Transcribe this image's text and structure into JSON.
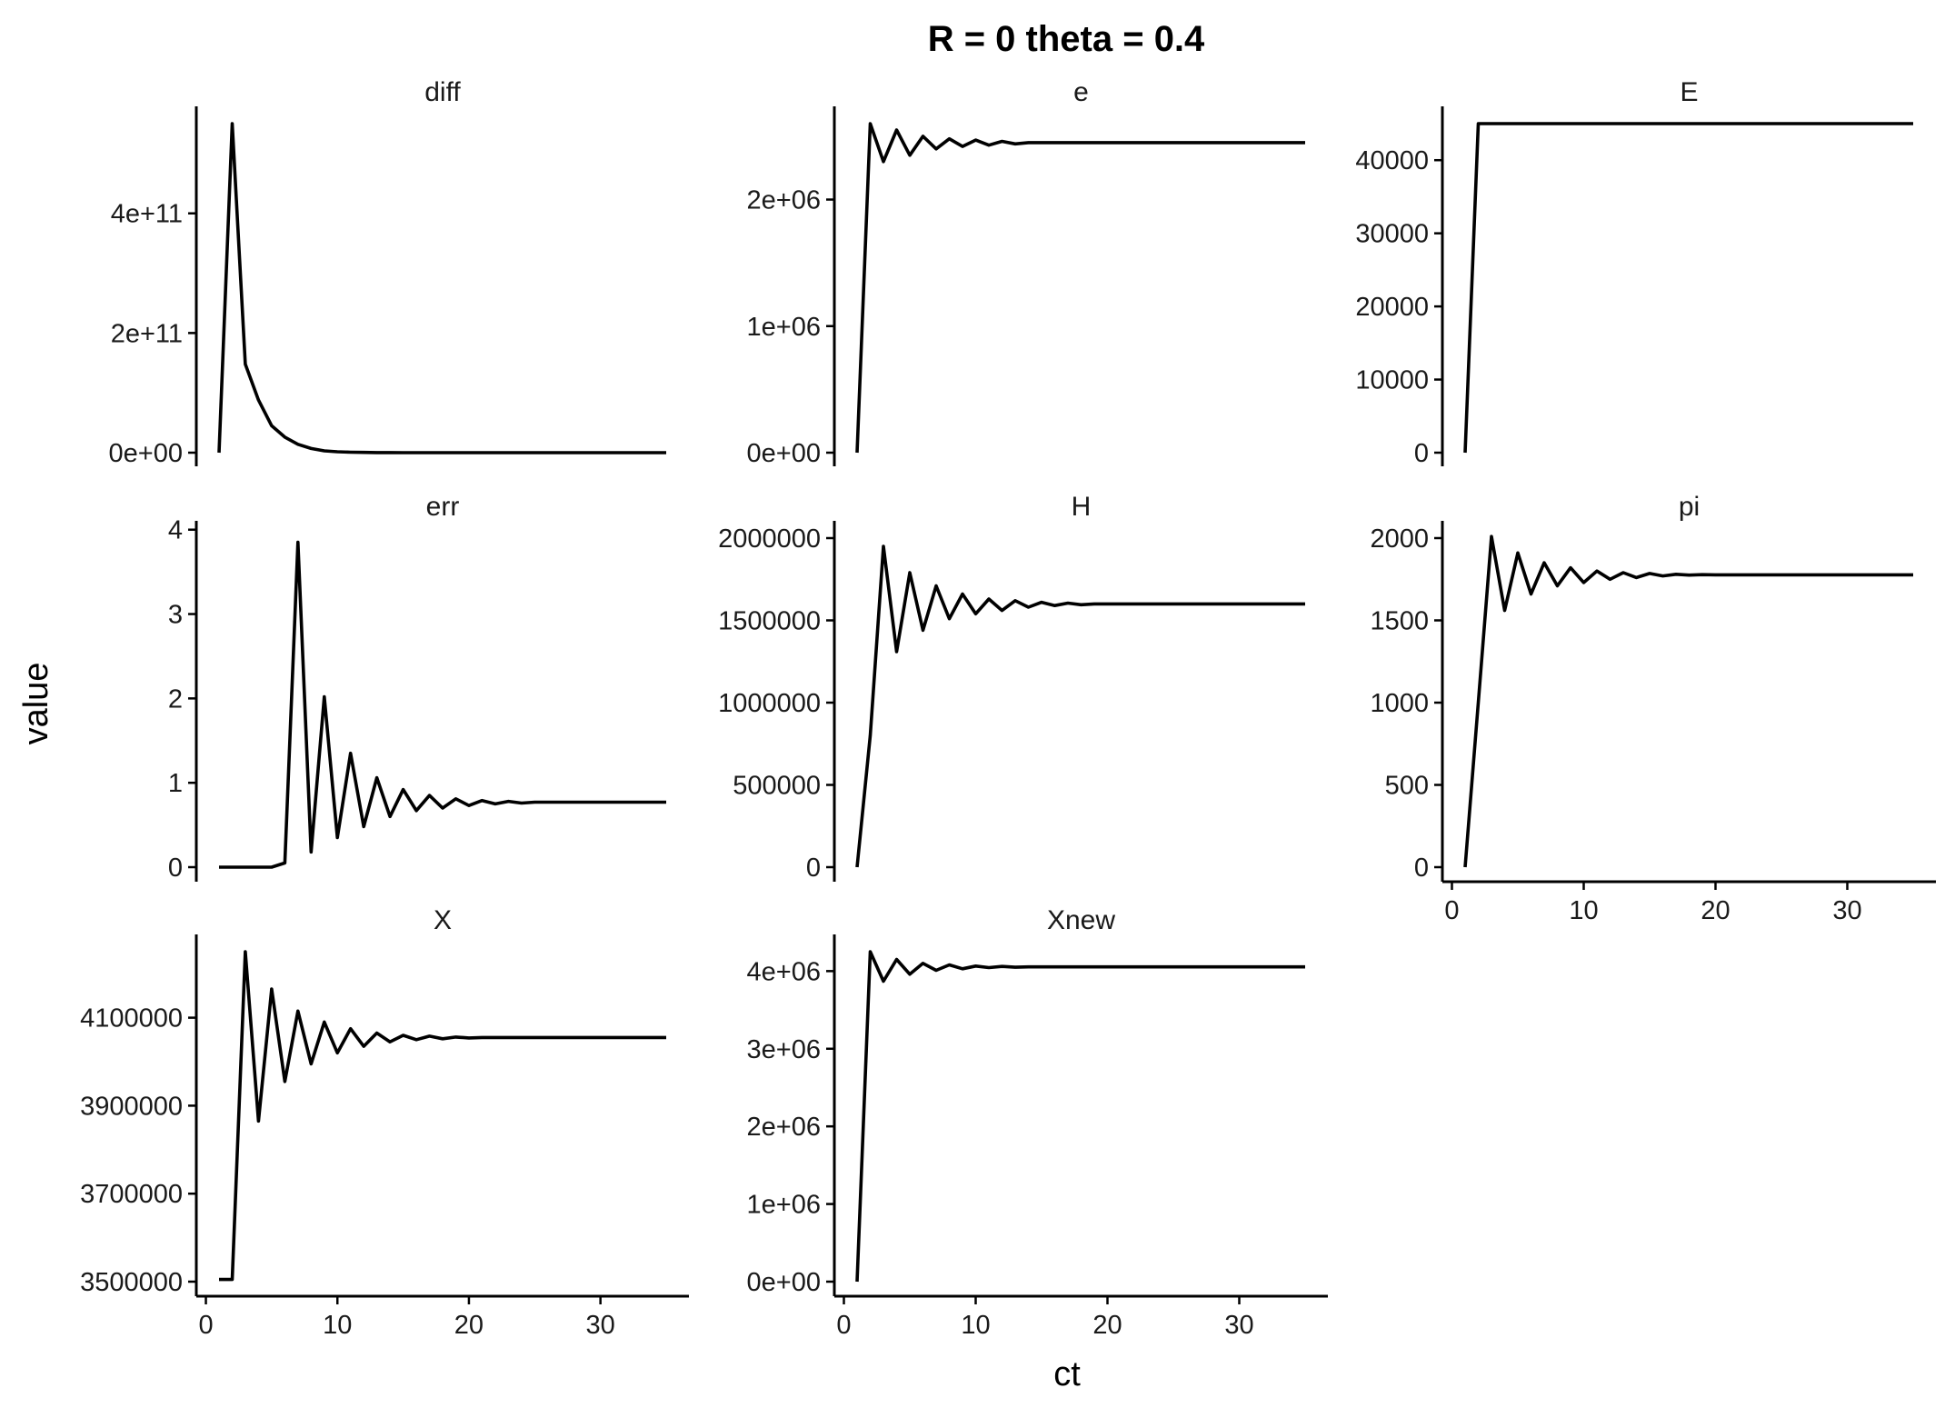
{
  "chart_data": {
    "type": "line",
    "title": "R =  0 theta =  0.4",
    "xlabel": "ct",
    "ylabel": "value",
    "x_ticks": [
      "0",
      "10",
      "20",
      "30"
    ],
    "xlim": [
      1,
      35
    ],
    "grid": false,
    "panels": [
      {
        "name": "diff",
        "ylim": [
          0,
          550000000000.0
        ],
        "y_ticks": [
          {
            "v": 0,
            "label": "0e+00"
          },
          {
            "v": 200000000000.0,
            "label": "2e+11"
          },
          {
            "v": 400000000000.0,
            "label": "4e+11"
          }
        ],
        "x": [
          1,
          2,
          3,
          4,
          5,
          6,
          7,
          8,
          9,
          10,
          11,
          12,
          13,
          14,
          15,
          16,
          17,
          18,
          19,
          20,
          21,
          22,
          23,
          24,
          25,
          26,
          27,
          28,
          29,
          30,
          31,
          32,
          33,
          34,
          35
        ],
        "values": [
          0,
          550000000000.0,
          148000000000.0,
          88000000000.0,
          45000000000.0,
          26000000000.0,
          14000000000.0,
          7000000000.0,
          3000000000.0,
          1500000000.0,
          800000000.0,
          400000000.0,
          200000000.0,
          100000000.0,
          50000000.0,
          20000000.0,
          10000000.0,
          5000000.0,
          2000000.0,
          1000000.0,
          500000.0,
          200000.0,
          100000.0,
          50000.0,
          20000.0,
          10000.0,
          5000.0,
          2000.0,
          1000.0,
          500.0,
          200.0,
          100.0,
          50,
          20,
          10
        ]
      },
      {
        "name": "e",
        "ylim": [
          0,
          2600000.0
        ],
        "y_ticks": [
          {
            "v": 0,
            "label": "0e+00"
          },
          {
            "v": 1000000.0,
            "label": "1e+06"
          },
          {
            "v": 2000000.0,
            "label": "2e+06"
          }
        ],
        "x": [
          1,
          2,
          3,
          4,
          5,
          6,
          7,
          8,
          9,
          10,
          11,
          12,
          13,
          14,
          15,
          16,
          17,
          18,
          19,
          20,
          21,
          22,
          23,
          24,
          25,
          26,
          27,
          28,
          29,
          30,
          31,
          32,
          33,
          34,
          35
        ],
        "values": [
          0,
          2600000.0,
          2300000.0,
          2550000.0,
          2350000.0,
          2500000.0,
          2400000.0,
          2480000.0,
          2420000.0,
          2470000.0,
          2430000.0,
          2460000.0,
          2440000.0,
          2450000.0,
          2450000.0,
          2450000.0,
          2450000.0,
          2450000.0,
          2450000.0,
          2450000.0,
          2450000.0,
          2450000.0,
          2450000.0,
          2450000.0,
          2450000.0,
          2450000.0,
          2450000.0,
          2450000.0,
          2450000.0,
          2450000.0,
          2450000.0,
          2450000.0,
          2450000.0,
          2450000.0,
          2450000.0
        ]
      },
      {
        "name": "E",
        "ylim": [
          0,
          45000
        ],
        "y_ticks": [
          {
            "v": 0,
            "label": "0"
          },
          {
            "v": 10000,
            "label": "10000"
          },
          {
            "v": 20000,
            "label": "20000"
          },
          {
            "v": 30000,
            "label": "30000"
          },
          {
            "v": 40000,
            "label": "40000"
          }
        ],
        "x": [
          1,
          2,
          35
        ],
        "values": [
          0,
          45000,
          45000
        ]
      },
      {
        "name": "err",
        "ylim": [
          0,
          3.9
        ],
        "y_ticks": [
          {
            "v": 0,
            "label": "0"
          },
          {
            "v": 1,
            "label": "1"
          },
          {
            "v": 2,
            "label": "2"
          },
          {
            "v": 3,
            "label": "3"
          },
          {
            "v": 4,
            "label": "4"
          }
        ],
        "x": [
          1,
          2,
          3,
          4,
          5,
          6,
          7,
          8,
          9,
          10,
          11,
          12,
          13,
          14,
          15,
          16,
          17,
          18,
          19,
          20,
          21,
          22,
          23,
          24,
          25,
          26,
          27,
          28,
          29,
          30,
          31,
          32,
          33,
          34,
          35
        ],
        "values": [
          0,
          0,
          0,
          0,
          0,
          0.05,
          3.85,
          0.18,
          2.02,
          0.35,
          1.35,
          0.48,
          1.06,
          0.6,
          0.92,
          0.67,
          0.85,
          0.7,
          0.81,
          0.73,
          0.79,
          0.75,
          0.78,
          0.76,
          0.77,
          0.77,
          0.77,
          0.77,
          0.77,
          0.77,
          0.77,
          0.77,
          0.77,
          0.77,
          0.77
        ]
      },
      {
        "name": "H",
        "ylim": [
          0,
          2000000
        ],
        "y_ticks": [
          {
            "v": 0,
            "label": "0"
          },
          {
            "v": 500000,
            "label": "500000"
          },
          {
            "v": 1000000,
            "label": "1000000"
          },
          {
            "v": 1500000,
            "label": "1500000"
          },
          {
            "v": 2000000,
            "label": "2000000"
          }
        ],
        "x": [
          1,
          2,
          3,
          4,
          5,
          6,
          7,
          8,
          9,
          10,
          11,
          12,
          13,
          14,
          15,
          16,
          17,
          18,
          19,
          20,
          21,
          22,
          23,
          24,
          25,
          26,
          27,
          28,
          29,
          30,
          31,
          32,
          33,
          34,
          35
        ],
        "values": [
          0,
          800000,
          1950000,
          1310000,
          1790000,
          1440000,
          1710000,
          1510000,
          1660000,
          1540000,
          1630000,
          1560000,
          1620000,
          1580000,
          1610000,
          1590000,
          1605000,
          1595000,
          1600000,
          1600000,
          1600000,
          1600000,
          1600000,
          1600000,
          1600000,
          1600000,
          1600000,
          1600000,
          1600000,
          1600000,
          1600000,
          1600000,
          1600000,
          1600000,
          1600000
        ]
      },
      {
        "name": "pi",
        "ylim": [
          0,
          2000
        ],
        "y_ticks": [
          {
            "v": 0,
            "label": "0"
          },
          {
            "v": 500,
            "label": "500"
          },
          {
            "v": 1000,
            "label": "1000"
          },
          {
            "v": 1500,
            "label": "1500"
          },
          {
            "v": 2000,
            "label": "2000"
          }
        ],
        "x": [
          1,
          2,
          3,
          4,
          5,
          6,
          7,
          8,
          9,
          10,
          11,
          12,
          13,
          14,
          15,
          16,
          17,
          18,
          19,
          20,
          21,
          22,
          23,
          24,
          25,
          26,
          27,
          28,
          29,
          30,
          31,
          32,
          33,
          34,
          35
        ],
        "values": [
          0,
          1000,
          2010,
          1560,
          1910,
          1660,
          1850,
          1710,
          1820,
          1730,
          1800,
          1750,
          1790,
          1760,
          1785,
          1770,
          1780,
          1775,
          1778,
          1777,
          1777,
          1777,
          1777,
          1777,
          1777,
          1777,
          1777,
          1777,
          1777,
          1777,
          1777,
          1777,
          1777,
          1777,
          1777
        ]
      },
      {
        "name": "X",
        "ylim": [
          3500000,
          4250000
        ],
        "y_ticks": [
          {
            "v": 3500000,
            "label": "3500000"
          },
          {
            "v": 3700000,
            "label": "3700000"
          },
          {
            "v": 3900000,
            "label": "3900000"
          },
          {
            "v": 4100000,
            "label": "4100000"
          }
        ],
        "x": [
          1,
          2,
          3,
          4,
          5,
          6,
          7,
          8,
          9,
          10,
          11,
          12,
          13,
          14,
          15,
          16,
          17,
          18,
          19,
          20,
          21,
          22,
          23,
          24,
          25,
          26,
          27,
          28,
          29,
          30,
          31,
          32,
          33,
          34,
          35
        ],
        "values": [
          3505000,
          3505000,
          4250000,
          3865000,
          4165000,
          3955000,
          4115000,
          3995000,
          4090000,
          4020000,
          4075000,
          4035000,
          4065000,
          4045000,
          4060000,
          4050000,
          4058000,
          4052000,
          4056000,
          4054000,
          4055000,
          4055000,
          4055000,
          4055000,
          4055000,
          4055000,
          4055000,
          4055000,
          4055000,
          4055000,
          4055000,
          4055000,
          4055000,
          4055000,
          4055000
        ]
      },
      {
        "name": "Xnew",
        "ylim": [
          0,
          4250000
        ],
        "y_ticks": [
          {
            "v": 0,
            "label": "0e+00"
          },
          {
            "v": 1000000,
            "label": "1e+06"
          },
          {
            "v": 2000000,
            "label": "2e+06"
          },
          {
            "v": 3000000,
            "label": "3e+06"
          },
          {
            "v": 4000000,
            "label": "4e+06"
          }
        ],
        "x": [
          1,
          2,
          3,
          4,
          5,
          6,
          7,
          8,
          9,
          10,
          11,
          12,
          13,
          14,
          15,
          16,
          17,
          18,
          19,
          20,
          21,
          22,
          23,
          24,
          25,
          26,
          27,
          28,
          29,
          30,
          31,
          32,
          33,
          34,
          35
        ],
        "values": [
          0,
          4250000,
          3870000,
          4150000,
          3960000,
          4100000,
          4010000,
          4080000,
          4030000,
          4065000,
          4045000,
          4060000,
          4050000,
          4055000,
          4055000,
          4055000,
          4055000,
          4055000,
          4055000,
          4055000,
          4055000,
          4055000,
          4055000,
          4055000,
          4055000,
          4055000,
          4055000,
          4055000,
          4055000,
          4055000,
          4055000,
          4055000,
          4055000,
          4055000,
          4055000
        ]
      }
    ]
  }
}
